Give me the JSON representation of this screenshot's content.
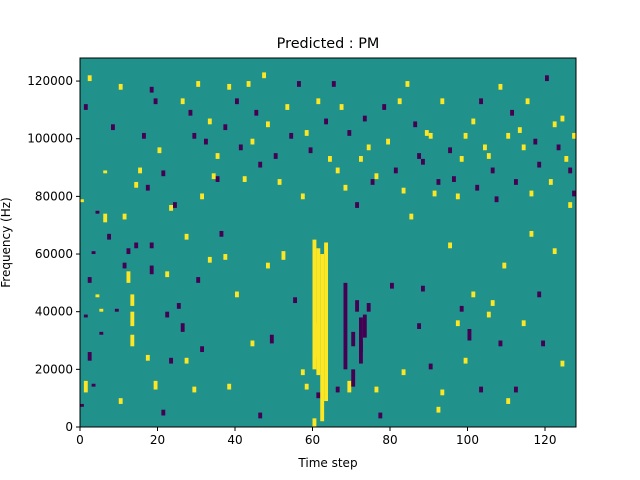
{
  "chart_data": {
    "type": "heatmap",
    "title": "Predicted : PM",
    "xlabel": "Time step",
    "ylabel": "Frequency (Hz)",
    "xlim": [
      0,
      128
    ],
    "ylim": [
      0,
      128000
    ],
    "x_ticks": [
      0,
      20,
      40,
      60,
      80,
      100,
      120
    ],
    "y_ticks": [
      0,
      20000,
      40000,
      60000,
      80000,
      100000,
      120000
    ],
    "grid": false,
    "legend": "none",
    "colormap": "viridis",
    "levels": [
      {
        "value": -1,
        "color": "#440154"
      },
      {
        "value": 0,
        "color": "#21918c"
      },
      {
        "value": 1,
        "color": "#fde725"
      }
    ],
    "grid_shape": [
      128,
      128
    ],
    "bin_size": {
      "time_step": 1,
      "frequency_hz": 1000
    },
    "background_value": 0,
    "cells": [
      [
        0,
        7000,
        1,
        -1
      ],
      [
        1,
        12000,
        4,
        1
      ],
      [
        2,
        23000,
        3,
        -1
      ],
      [
        3,
        14000,
        1,
        -1
      ],
      [
        4,
        45000,
        1,
        1
      ],
      [
        5,
        40000,
        1,
        1
      ],
      [
        6,
        71000,
        3,
        1
      ],
      [
        10,
        8000,
        2,
        1
      ],
      [
        11,
        55000,
        2,
        -1
      ],
      [
        12,
        50000,
        4,
        1
      ],
      [
        13,
        28000,
        4,
        1
      ],
      [
        13,
        35000,
        5,
        1
      ],
      [
        13,
        42000,
        4,
        1
      ],
      [
        14,
        62000,
        2,
        -1
      ],
      [
        17,
        23000,
        2,
        1
      ],
      [
        18,
        53000,
        3,
        -1
      ],
      [
        18,
        62000,
        2,
        -1
      ],
      [
        19,
        13000,
        3,
        1
      ],
      [
        21,
        4000,
        2,
        -1
      ],
      [
        22,
        38000,
        2,
        -1
      ],
      [
        23,
        22000,
        2,
        -1
      ],
      [
        25,
        41000,
        2,
        -1
      ],
      [
        26,
        33000,
        3,
        -1
      ],
      [
        27,
        22000,
        2,
        1
      ],
      [
        29,
        12000,
        2,
        1
      ],
      [
        30,
        50000,
        2,
        -1
      ],
      [
        31,
        26000,
        2,
        -1
      ],
      [
        33,
        57000,
        2,
        1
      ],
      [
        35,
        85000,
        2,
        -1
      ],
      [
        37,
        58000,
        2,
        1
      ],
      [
        38,
        13000,
        2,
        1
      ],
      [
        40,
        45000,
        2,
        1
      ],
      [
        44,
        28000,
        2,
        1
      ],
      [
        46,
        3000,
        2,
        -1
      ],
      [
        48,
        55000,
        2,
        1
      ],
      [
        49,
        29000,
        3,
        -1
      ],
      [
        52,
        58000,
        3,
        1
      ],
      [
        55,
        43000,
        2,
        -1
      ],
      [
        57,
        18000,
        2,
        1
      ],
      [
        58,
        13000,
        2,
        1
      ],
      [
        60,
        0,
        3,
        1
      ],
      [
        60,
        20000,
        45,
        1
      ],
      [
        60,
        24000,
        12,
        1
      ],
      [
        61,
        18000,
        44,
        1
      ],
      [
        61,
        10000,
        2,
        -1
      ],
      [
        62,
        2000,
        58,
        1
      ],
      [
        63,
        9000,
        55,
        1
      ],
      [
        66,
        12000,
        2,
        -1
      ],
      [
        68,
        20000,
        30,
        -1
      ],
      [
        69,
        12000,
        4,
        1
      ],
      [
        70,
        14000,
        6,
        -1
      ],
      [
        70,
        28000,
        5,
        -1
      ],
      [
        71,
        40000,
        4,
        -1
      ],
      [
        72,
        22000,
        8,
        -1
      ],
      [
        72,
        26000,
        12,
        -1
      ],
      [
        73,
        31000,
        8,
        -1
      ],
      [
        74,
        40000,
        3,
        -1
      ],
      [
        76,
        12000,
        2,
        1
      ],
      [
        77,
        3000,
        2,
        -1
      ],
      [
        80,
        48000,
        2,
        -1
      ],
      [
        83,
        18000,
        2,
        1
      ],
      [
        87,
        34000,
        2,
        -1
      ],
      [
        88,
        47000,
        2,
        -1
      ],
      [
        90,
        20000,
        2,
        -1
      ],
      [
        92,
        5000,
        2,
        1
      ],
      [
        93,
        11000,
        2,
        1
      ],
      [
        95,
        62000,
        2,
        1
      ],
      [
        97,
        35000,
        2,
        1
      ],
      [
        98,
        40000,
        2,
        -1
      ],
      [
        99,
        22000,
        2,
        1
      ],
      [
        100,
        30000,
        4,
        -1
      ],
      [
        101,
        45000,
        2,
        1
      ],
      [
        103,
        12000,
        2,
        -1
      ],
      [
        105,
        38000,
        2,
        1
      ],
      [
        106,
        42000,
        2,
        1
      ],
      [
        108,
        28000,
        2,
        -1
      ],
      [
        109,
        55000,
        2,
        1
      ],
      [
        110,
        8000,
        2,
        1
      ],
      [
        112,
        12000,
        2,
        -1
      ],
      [
        114,
        35000,
        2,
        1
      ],
      [
        116,
        66000,
        2,
        1
      ],
      [
        118,
        45000,
        2,
        -1
      ],
      [
        119,
        28000,
        2,
        -1
      ],
      [
        122,
        60000,
        2,
        1
      ],
      [
        124,
        21000,
        2,
        1
      ],
      [
        126,
        76000,
        2,
        1
      ],
      [
        1,
        38000,
        1,
        -1
      ],
      [
        2,
        50000,
        2,
        -1
      ],
      [
        3,
        60000,
        1,
        -1
      ],
      [
        5,
        32000,
        1,
        -1
      ],
      [
        7,
        65000,
        2,
        -1
      ],
      [
        9,
        40000,
        1,
        -1
      ],
      [
        11,
        72000,
        2,
        1
      ],
      [
        12,
        60000,
        2,
        -1
      ],
      [
        15,
        88000,
        2,
        1
      ],
      [
        16,
        100000,
        2,
        -1
      ],
      [
        17,
        82000,
        2,
        -1
      ],
      [
        19,
        112000,
        2,
        -1
      ],
      [
        20,
        95000,
        2,
        1
      ],
      [
        22,
        52000,
        2,
        1
      ],
      [
        24,
        76000,
        2,
        -1
      ],
      [
        27,
        65000,
        2,
        1
      ],
      [
        28,
        108000,
        2,
        -1
      ],
      [
        30,
        118000,
        2,
        1
      ],
      [
        32,
        98000,
        2,
        -1
      ],
      [
        33,
        105000,
        2,
        1
      ],
      [
        34,
        86000,
        2,
        1
      ],
      [
        36,
        66000,
        2,
        -1
      ],
      [
        38,
        117000,
        2,
        1
      ],
      [
        40,
        112000,
        2,
        -1
      ],
      [
        42,
        85000,
        2,
        1
      ],
      [
        44,
        98000,
        2,
        1
      ],
      [
        45,
        108000,
        2,
        -1
      ],
      [
        47,
        121000,
        2,
        1
      ],
      [
        50,
        93000,
        2,
        -1
      ],
      [
        53,
        110000,
        2,
        1
      ],
      [
        56,
        118000,
        2,
        -1
      ],
      [
        58,
        101000,
        2,
        1
      ],
      [
        61,
        112000,
        2,
        1
      ],
      [
        63,
        105000,
        2,
        -1
      ],
      [
        64,
        92000,
        2,
        1
      ],
      [
        65,
        118000,
        2,
        -1
      ],
      [
        67,
        110000,
        2,
        1
      ],
      [
        69,
        101000,
        2,
        -1
      ],
      [
        72,
        92000,
        2,
        1
      ],
      [
        73,
        106000,
        2,
        -1
      ],
      [
        74,
        96000,
        2,
        1
      ],
      [
        76,
        86000,
        2,
        1
      ],
      [
        78,
        110000,
        2,
        -1
      ],
      [
        82,
        112000,
        2,
        1
      ],
      [
        84,
        118000,
        2,
        1
      ],
      [
        86,
        104000,
        2,
        -1
      ],
      [
        88,
        91000,
        2,
        -1
      ],
      [
        89,
        101000,
        2,
        1
      ],
      [
        91,
        80000,
        2,
        1
      ],
      [
        93,
        112000,
        2,
        1
      ],
      [
        96,
        85000,
        2,
        -1
      ],
      [
        98,
        92000,
        2,
        1
      ],
      [
        101,
        105000,
        2,
        1
      ],
      [
        103,
        112000,
        2,
        -1
      ],
      [
        104,
        96000,
        2,
        1
      ],
      [
        106,
        88000,
        2,
        -1
      ],
      [
        108,
        117000,
        2,
        1
      ],
      [
        111,
        108000,
        2,
        -1
      ],
      [
        113,
        102000,
        2,
        1
      ],
      [
        115,
        112000,
        2,
        1
      ],
      [
        117,
        98000,
        2,
        -1
      ],
      [
        120,
        120000,
        2,
        -1
      ],
      [
        122,
        104000,
        2,
        1
      ],
      [
        124,
        106000,
        2,
        1
      ],
      [
        126,
        88000,
        2,
        -1
      ],
      [
        127,
        100000,
        2,
        1
      ],
      [
        0,
        78000,
        1,
        1
      ],
      [
        1,
        110000,
        2,
        -1
      ],
      [
        2,
        120000,
        2,
        1
      ],
      [
        4,
        74000,
        1,
        -1
      ],
      [
        6,
        88000,
        1,
        1
      ],
      [
        8,
        103000,
        2,
        -1
      ],
      [
        10,
        117000,
        2,
        1
      ],
      [
        14,
        83000,
        2,
        1
      ],
      [
        18,
        116000,
        2,
        -1
      ],
      [
        21,
        87000,
        2,
        -1
      ],
      [
        23,
        75000,
        2,
        1
      ],
      [
        26,
        112000,
        2,
        1
      ],
      [
        29,
        100000,
        2,
        -1
      ],
      [
        31,
        79000,
        2,
        1
      ],
      [
        35,
        93000,
        2,
        1
      ],
      [
        37,
        103000,
        2,
        -1
      ],
      [
        41,
        96000,
        2,
        -1
      ],
      [
        43,
        118000,
        2,
        1
      ],
      [
        46,
        90000,
        2,
        -1
      ],
      [
        48,
        104000,
        2,
        1
      ],
      [
        51,
        84000,
        2,
        1
      ],
      [
        54,
        100000,
        2,
        -1
      ],
      [
        57,
        79000,
        2,
        1
      ],
      [
        59,
        95000,
        2,
        -1
      ],
      [
        66,
        88000,
        2,
        1
      ],
      [
        68,
        82000,
        2,
        1
      ],
      [
        71,
        76000,
        2,
        -1
      ],
      [
        75,
        84000,
        2,
        -1
      ],
      [
        79,
        98000,
        2,
        1
      ],
      [
        81,
        88000,
        2,
        -1
      ],
      [
        83,
        81000,
        2,
        1
      ],
      [
        85,
        72000,
        2,
        1
      ],
      [
        87,
        93000,
        2,
        -1
      ],
      [
        90,
        100000,
        2,
        1
      ],
      [
        92,
        84000,
        2,
        -1
      ],
      [
        95,
        95000,
        2,
        -1
      ],
      [
        97,
        79000,
        2,
        1
      ],
      [
        99,
        100000,
        2,
        1
      ],
      [
        102,
        82000,
        2,
        -1
      ],
      [
        105,
        93000,
        2,
        1
      ],
      [
        107,
        78000,
        2,
        -1
      ],
      [
        110,
        100000,
        2,
        1
      ],
      [
        112,
        84000,
        2,
        -1
      ],
      [
        114,
        96000,
        2,
        1
      ],
      [
        116,
        80000,
        2,
        1
      ],
      [
        118,
        90000,
        2,
        -1
      ],
      [
        121,
        84000,
        2,
        1
      ],
      [
        123,
        96000,
        2,
        -1
      ],
      [
        125,
        92000,
        2,
        1
      ],
      [
        127,
        80000,
        2,
        -1
      ]
    ]
  }
}
